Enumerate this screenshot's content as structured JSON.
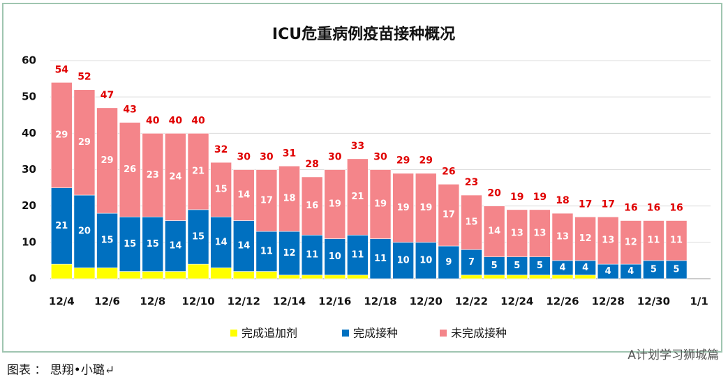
{
  "chart_data": {
    "type": "stacked-bar",
    "title": "ICU危重病例疫苗接种概况",
    "categories": [
      "12/4",
      null,
      "12/6",
      null,
      "12/8",
      null,
      "12/10",
      null,
      "12/12",
      null,
      "12/14",
      null,
      "12/16",
      null,
      "12/18",
      null,
      "12/20",
      null,
      "12/22",
      null,
      "12/24",
      null,
      "12/26",
      null,
      "12/28",
      null,
      "12/30",
      null,
      "1/1"
    ],
    "series": [
      {
        "name": "完成追加剂",
        "color": "#ffff00",
        "label_color": "#ffff00",
        "values": [
          4,
          3,
          3,
          2,
          2,
          2,
          4,
          3,
          2,
          2,
          1,
          1,
          1,
          1,
          null,
          null,
          null,
          null,
          1,
          1,
          1,
          1,
          1,
          1,
          null,
          null,
          null,
          null,
          null
        ]
      },
      {
        "name": "完成接种",
        "color": "#0070c0",
        "label_color": "#ffffff",
        "values": [
          21,
          20,
          15,
          15,
          15,
          14,
          15,
          14,
          14,
          11,
          12,
          11,
          10,
          11,
          11,
          10,
          10,
          9,
          7,
          5,
          5,
          5,
          4,
          4,
          4,
          4,
          5,
          5,
          null
        ]
      },
      {
        "name": "未完成接种",
        "color": "#f4858a",
        "label_color": "#ffffff",
        "values": [
          29,
          29,
          29,
          26,
          23,
          24,
          21,
          15,
          14,
          17,
          18,
          16,
          19,
          21,
          19,
          19,
          19,
          17,
          15,
          14,
          13,
          13,
          13,
          12,
          13,
          12,
          11,
          11,
          null
        ]
      }
    ],
    "totals": [
      54,
      52,
      47,
      43,
      40,
      40,
      40,
      32,
      30,
      30,
      31,
      28,
      30,
      33,
      30,
      29,
      29,
      26,
      23,
      20,
      19,
      19,
      18,
      17,
      17,
      16,
      16,
      16,
      null
    ],
    "total_color": "#e00000",
    "ylim": [
      0,
      60
    ],
    "yticks": [
      0,
      10,
      20,
      30,
      40,
      50,
      60
    ],
    "grid": true,
    "legend": "bottom"
  },
  "caption": "图表 ： 思翔•小璐↵",
  "watermark": "A计划学习狮城篇"
}
